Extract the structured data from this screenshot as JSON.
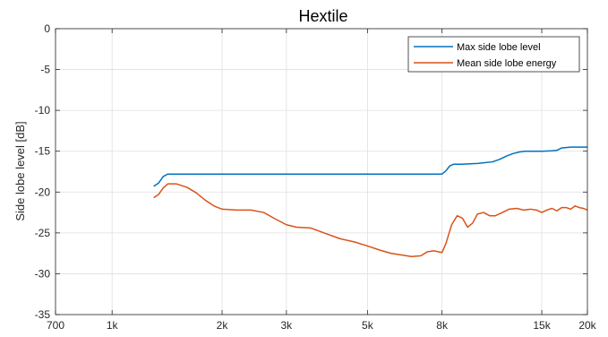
{
  "chart_data": {
    "type": "line",
    "title": "Hextile",
    "xlabel": "",
    "ylabel": "Side lobe level [dB]",
    "xscale": "log",
    "xlim": [
      700,
      20000
    ],
    "ylim": [
      -35,
      0
    ],
    "grid": true,
    "legend_position": "top-right",
    "x_ticks": [
      700,
      1000,
      2000,
      3000,
      5000,
      8000,
      15000,
      20000
    ],
    "x_tick_labels": [
      "700",
      "1k",
      "2k",
      "3k",
      "5k",
      "8k",
      "15k",
      "20k"
    ],
    "y_ticks": [
      0,
      -5,
      -10,
      -15,
      -20,
      -25,
      -30,
      -35
    ],
    "y_tick_labels": [
      "0",
      "-5",
      "-10",
      "-15",
      "-20",
      "-25",
      "-30",
      "-35"
    ],
    "series": [
      {
        "name": "Max side lobe level",
        "color": "#0072bd",
        "x": [
          1300,
          1340,
          1380,
          1420,
          2000,
          3000,
          5000,
          7000,
          8000,
          8200,
          8400,
          8600,
          9000,
          10000,
          11000,
          11500,
          12000,
          12500,
          13000,
          13500,
          14000,
          15000,
          16000,
          16500,
          17000,
          17500,
          18000,
          20000
        ],
        "values": [
          -19.3,
          -18.9,
          -18.1,
          -17.8,
          -17.8,
          -17.8,
          -17.8,
          -17.8,
          -17.8,
          -17.4,
          -16.8,
          -16.6,
          -16.6,
          -16.5,
          -16.3,
          -16.0,
          -15.6,
          -15.3,
          -15.1,
          -15.0,
          -15.0,
          -15.0,
          -14.95,
          -14.9,
          -14.6,
          -14.55,
          -14.5,
          -14.5
        ]
      },
      {
        "name": "Mean side lobe energy",
        "color": "#d95319",
        "x": [
          1300,
          1340,
          1380,
          1420,
          1500,
          1600,
          1700,
          1800,
          1900,
          2000,
          2200,
          2400,
          2600,
          2800,
          3000,
          3200,
          3500,
          3800,
          4200,
          4600,
          5000,
          5400,
          5800,
          6200,
          6600,
          7000,
          7300,
          7600,
          8000,
          8200,
          8500,
          8800,
          9100,
          9400,
          9700,
          10000,
          10400,
          10800,
          11200,
          11700,
          12200,
          12800,
          13400,
          14000,
          14500,
          15000,
          15500,
          16000,
          16500,
          17000,
          17500,
          18000,
          18500,
          19000,
          19500,
          20000
        ],
        "values": [
          -20.7,
          -20.3,
          -19.5,
          -19.0,
          -19.0,
          -19.4,
          -20.1,
          -21.0,
          -21.7,
          -22.1,
          -22.2,
          -22.2,
          -22.5,
          -23.3,
          -24.0,
          -24.3,
          -24.4,
          -25.0,
          -25.7,
          -26.1,
          -26.6,
          -27.1,
          -27.5,
          -27.7,
          -27.9,
          -27.8,
          -27.3,
          -27.2,
          -27.4,
          -26.3,
          -24.0,
          -22.9,
          -23.2,
          -24.3,
          -23.8,
          -22.7,
          -22.5,
          -22.9,
          -22.9,
          -22.5,
          -22.1,
          -22.0,
          -22.2,
          -22.1,
          -22.2,
          -22.5,
          -22.2,
          -22.0,
          -22.3,
          -21.9,
          -21.9,
          -22.1,
          -21.7,
          -21.9,
          -22.0,
          -22.2
        ]
      }
    ]
  }
}
